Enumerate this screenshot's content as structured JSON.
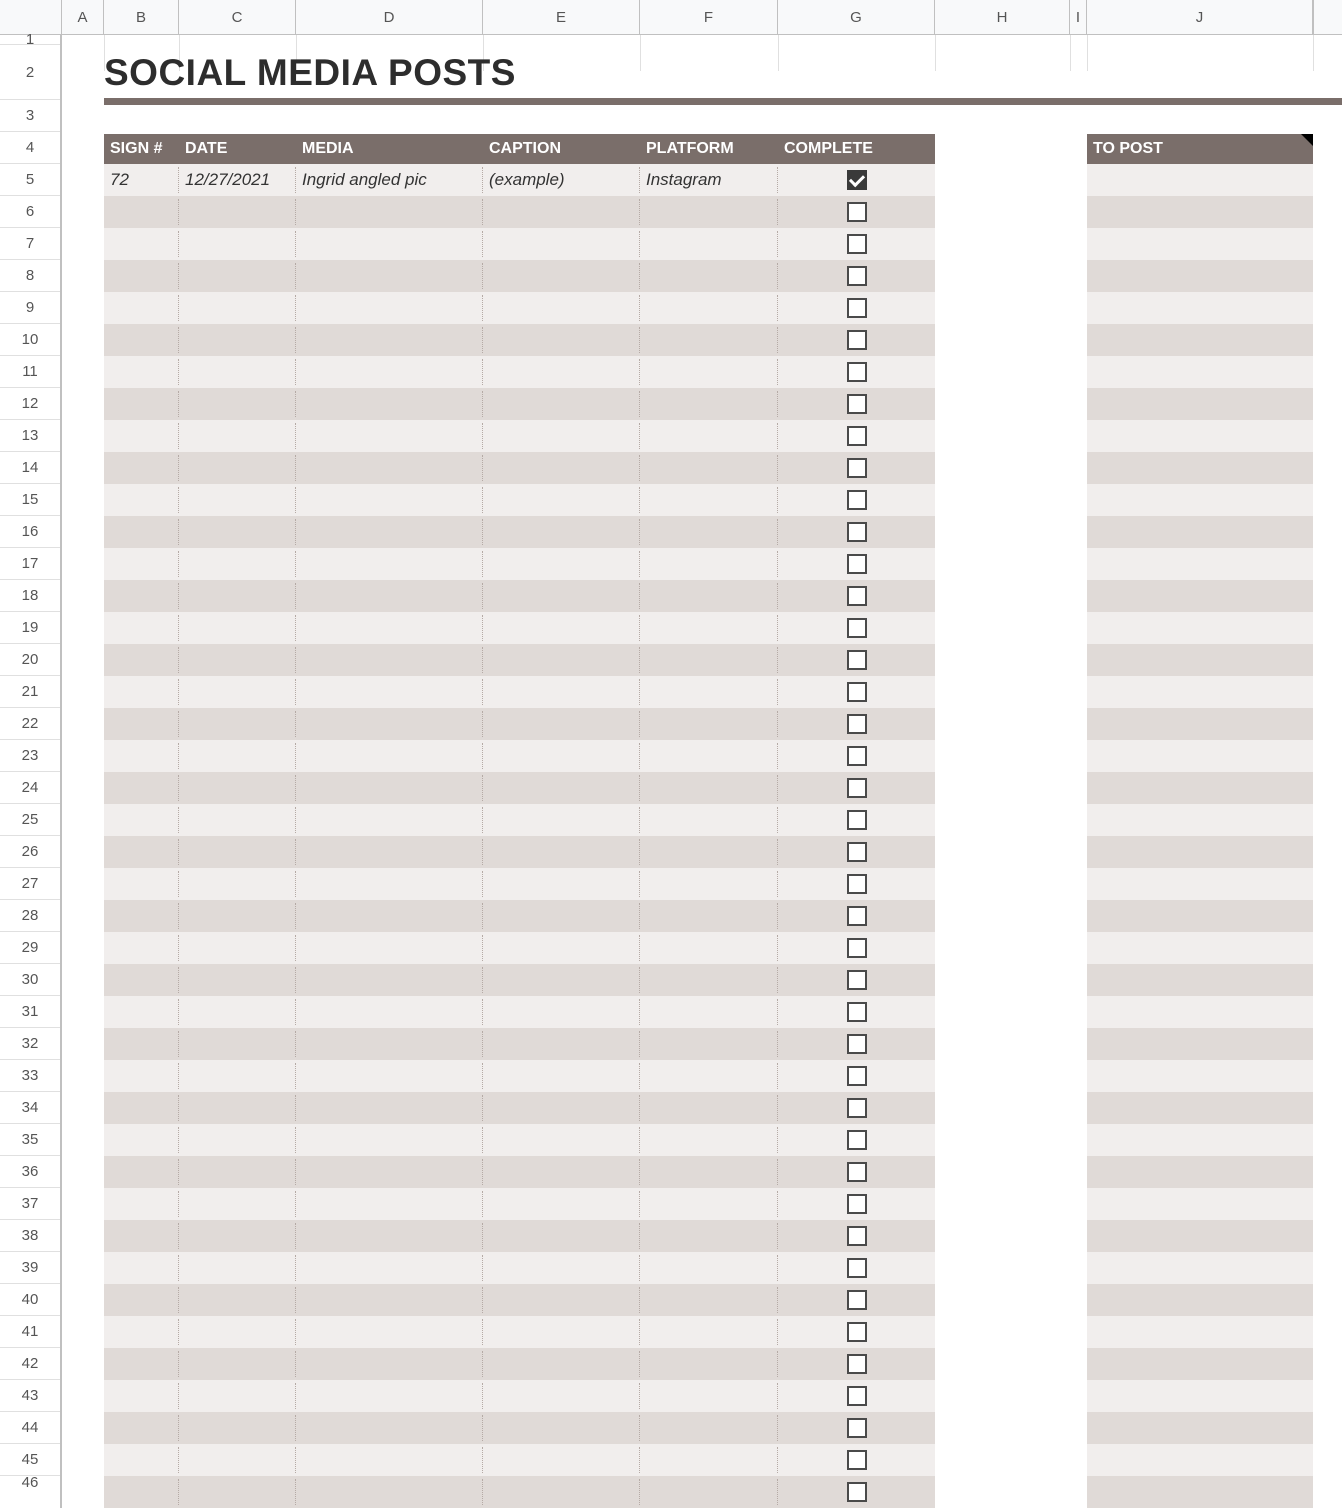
{
  "columns": {
    "labels": [
      "A",
      "B",
      "C",
      "D",
      "E",
      "F",
      "G",
      "H",
      "I",
      "J"
    ],
    "widths": [
      42,
      75,
      117,
      187,
      157,
      138,
      157,
      135,
      17,
      226
    ]
  },
  "rowHeaders": {
    "first_partial": "1",
    "big": "2",
    "start": 3,
    "end": 45,
    "last_partial": "46"
  },
  "title": "SOCIAL MEDIA POSTS",
  "mainTable": {
    "headers": {
      "sign": "SIGN #",
      "date": "DATE",
      "media": "MEDIA",
      "caption": "CAPTION",
      "platform": "PLATFORM",
      "complete": "COMPLETE"
    },
    "rows": [
      {
        "sign": "72",
        "date": "12/27/2021",
        "media": "Ingrid angled pic",
        "caption": "(example)",
        "platform": "Instagram",
        "complete": true
      }
    ],
    "emptyRowCount": 41
  },
  "sideTable": {
    "header": "TO POST",
    "emptyRowCount": 42
  },
  "colors": {
    "header_bg": "#7a6e6a",
    "header_text": "#ffffff",
    "row_odd": "#f1eeed",
    "row_even": "#e0dad7",
    "title_underline": "#7a6e6a",
    "title_text": "#2d2d2d",
    "grid_border": "#c0c0c0",
    "checkbox_border": "#4a4a4a",
    "checkbox_checked_bg": "#3a3a3a"
  }
}
